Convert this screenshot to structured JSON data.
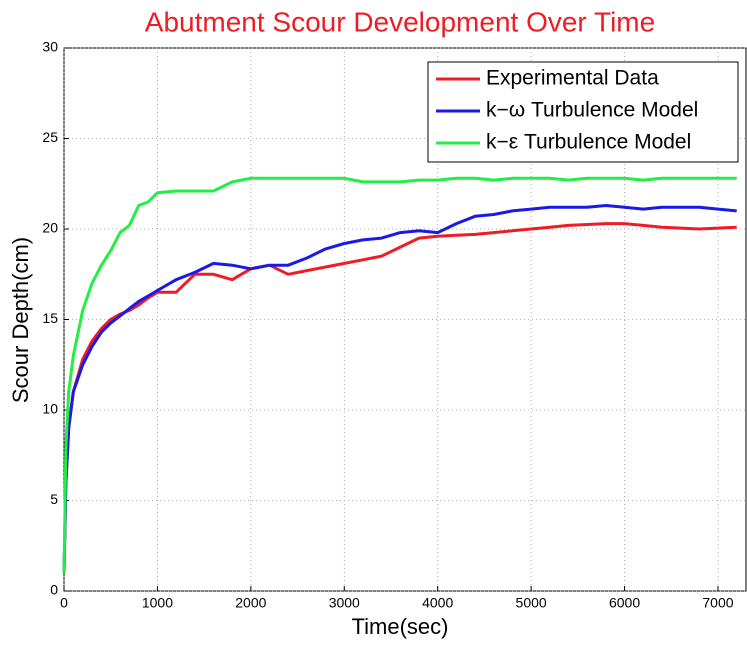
{
  "chart_data": {
    "type": "line",
    "title": "Abutment Scour Development Over Time",
    "xlabel": "Time(sec)",
    "ylabel": "Scour Depth(cm)",
    "x": [
      0,
      20,
      50,
      100,
      200,
      300,
      400,
      500,
      600,
      700,
      800,
      900,
      1000,
      1200,
      1400,
      1600,
      1800,
      2000,
      2200,
      2400,
      2600,
      2800,
      3000,
      3200,
      3400,
      3600,
      3800,
      4000,
      4200,
      4400,
      4600,
      4800,
      5000,
      5200,
      5400,
      5600,
      5800,
      6000,
      6200,
      6400,
      6600,
      6800,
      7000,
      7200
    ],
    "series": [
      {
        "name": "Experimental Data",
        "color": "#ee1c25",
        "values": [
          1,
          6,
          9,
          11,
          12.8,
          13.8,
          14.5,
          15,
          15.3,
          15.5,
          15.8,
          16.2,
          16.5,
          16.5,
          17.5,
          17.5,
          17.2,
          17.8,
          18,
          17.5,
          17.7,
          17.9,
          18.1,
          18.3,
          18.5,
          19,
          19.5,
          19.6,
          19.65,
          19.7,
          19.8,
          19.9,
          20,
          20.1,
          20.2,
          20.25,
          20.3,
          20.3,
          20.2,
          20.1,
          20.05,
          20,
          20.05,
          20.1
        ]
      },
      {
        "name": "k−ω Turbulence Model",
        "color": "#1a1ae6",
        "values": [
          1,
          6,
          9,
          11,
          12.5,
          13.5,
          14.3,
          14.8,
          15.2,
          15.6,
          16,
          16.3,
          16.6,
          17.2,
          17.6,
          18.1,
          18,
          17.8,
          18,
          18,
          18.4,
          18.9,
          19.2,
          19.4,
          19.5,
          19.8,
          19.9,
          19.8,
          20.3,
          20.7,
          20.8,
          21,
          21.1,
          21.2,
          21.2,
          21.2,
          21.3,
          21.2,
          21.1,
          21.2,
          21.2,
          21.2,
          21.1,
          21
        ]
      },
      {
        "name": "k−ε Turbulence Model",
        "color": "#22ee44",
        "values": [
          1,
          8,
          11,
          13,
          15.5,
          17,
          18,
          18.8,
          19.8,
          20.2,
          21.3,
          21.5,
          22,
          22.1,
          22.1,
          22.1,
          22.6,
          22.8,
          22.8,
          22.8,
          22.8,
          22.8,
          22.8,
          22.6,
          22.6,
          22.6,
          22.7,
          22.7,
          22.8,
          22.8,
          22.7,
          22.8,
          22.8,
          22.8,
          22.7,
          22.8,
          22.8,
          22.8,
          22.7,
          22.8,
          22.8,
          22.8,
          22.8,
          22.8
        ]
      }
    ],
    "xlim": [
      0,
      7300
    ],
    "xticks": [
      0,
      1000,
      2000,
      3000,
      4000,
      5000,
      6000,
      7000
    ],
    "ylim": [
      0,
      30
    ],
    "yticks": [
      0,
      5,
      10,
      15,
      20,
      25,
      30
    ],
    "grid": true,
    "legend": "upper right"
  }
}
